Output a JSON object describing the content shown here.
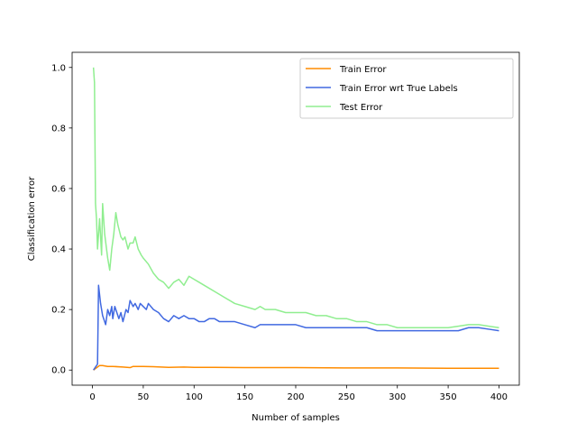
{
  "chart_data": {
    "type": "line",
    "title": "",
    "xlabel": "Number of samples",
    "ylabel": "Classification error",
    "xlim": [
      -20,
      420
    ],
    "ylim": [
      -0.05,
      1.05
    ],
    "x_ticks": [
      0,
      50,
      100,
      150,
      200,
      250,
      300,
      350,
      400
    ],
    "x_tick_labels": [
      "0",
      "50",
      "100",
      "150",
      "200",
      "250",
      "300",
      "350",
      "400"
    ],
    "y_ticks": [
      0.0,
      0.2,
      0.4,
      0.6,
      0.8,
      1.0
    ],
    "y_tick_labels": [
      "0.0",
      "0.2",
      "0.4",
      "0.6",
      "0.8",
      "1.0"
    ],
    "grid": false,
    "legend_position": "top-right",
    "series": [
      {
        "name": "Train Error",
        "color": "#ff8c00",
        "x": [
          1,
          3,
          5,
          7,
          10,
          15,
          20,
          30,
          37,
          40,
          50,
          60,
          75,
          90,
          100,
          120,
          150,
          200,
          250,
          300,
          350,
          400
        ],
        "y": [
          0.0,
          0.005,
          0.01,
          0.015,
          0.015,
          0.012,
          0.012,
          0.01,
          0.008,
          0.012,
          0.012,
          0.011,
          0.009,
          0.01,
          0.009,
          0.009,
          0.008,
          0.008,
          0.007,
          0.007,
          0.006,
          0.006
        ]
      },
      {
        "name": "Train Error wrt True Labels",
        "color": "#4169e1",
        "x": [
          1,
          3,
          5,
          6,
          8,
          10,
          12,
          13,
          15,
          17,
          19,
          20,
          22,
          24,
          26,
          28,
          30,
          33,
          35,
          37,
          40,
          42,
          45,
          47,
          50,
          53,
          55,
          60,
          65,
          70,
          75,
          80,
          85,
          90,
          95,
          100,
          105,
          110,
          115,
          120,
          125,
          130,
          140,
          150,
          160,
          165,
          170,
          180,
          190,
          200,
          210,
          220,
          230,
          240,
          250,
          260,
          270,
          280,
          290,
          300,
          310,
          320,
          330,
          340,
          350,
          360,
          370,
          380,
          390,
          400
        ],
        "y": [
          0.0,
          0.01,
          0.02,
          0.28,
          0.22,
          0.18,
          0.16,
          0.15,
          0.2,
          0.18,
          0.21,
          0.17,
          0.21,
          0.19,
          0.17,
          0.19,
          0.16,
          0.2,
          0.19,
          0.23,
          0.21,
          0.22,
          0.2,
          0.22,
          0.21,
          0.2,
          0.22,
          0.2,
          0.19,
          0.17,
          0.16,
          0.18,
          0.17,
          0.18,
          0.17,
          0.17,
          0.16,
          0.16,
          0.17,
          0.17,
          0.16,
          0.16,
          0.16,
          0.15,
          0.14,
          0.15,
          0.15,
          0.15,
          0.15,
          0.15,
          0.14,
          0.14,
          0.14,
          0.14,
          0.14,
          0.14,
          0.14,
          0.13,
          0.13,
          0.13,
          0.13,
          0.13,
          0.13,
          0.13,
          0.13,
          0.13,
          0.14,
          0.14,
          0.135,
          0.13
        ]
      },
      {
        "name": "Test Error",
        "color": "#90ee90",
        "x": [
          1,
          2,
          3,
          4,
          5,
          7,
          9,
          10,
          12,
          15,
          17,
          19,
          21,
          23,
          25,
          28,
          30,
          32,
          35,
          37,
          40,
          42,
          45,
          48,
          50,
          55,
          60,
          65,
          70,
          75,
          80,
          85,
          90,
          95,
          100,
          105,
          110,
          120,
          130,
          140,
          150,
          160,
          165,
          170,
          180,
          190,
          200,
          210,
          220,
          230,
          240,
          250,
          260,
          270,
          280,
          290,
          300,
          310,
          320,
          330,
          340,
          350,
          360,
          370,
          380,
          390,
          400
        ],
        "y": [
          1.0,
          0.95,
          0.55,
          0.5,
          0.4,
          0.5,
          0.38,
          0.55,
          0.45,
          0.37,
          0.33,
          0.4,
          0.45,
          0.52,
          0.48,
          0.44,
          0.43,
          0.44,
          0.4,
          0.42,
          0.42,
          0.44,
          0.4,
          0.38,
          0.37,
          0.35,
          0.32,
          0.3,
          0.29,
          0.27,
          0.29,
          0.3,
          0.28,
          0.31,
          0.3,
          0.29,
          0.28,
          0.26,
          0.24,
          0.22,
          0.21,
          0.2,
          0.21,
          0.2,
          0.2,
          0.19,
          0.19,
          0.19,
          0.18,
          0.18,
          0.17,
          0.17,
          0.16,
          0.16,
          0.15,
          0.15,
          0.14,
          0.14,
          0.14,
          0.14,
          0.14,
          0.14,
          0.145,
          0.15,
          0.15,
          0.145,
          0.14
        ]
      }
    ]
  }
}
